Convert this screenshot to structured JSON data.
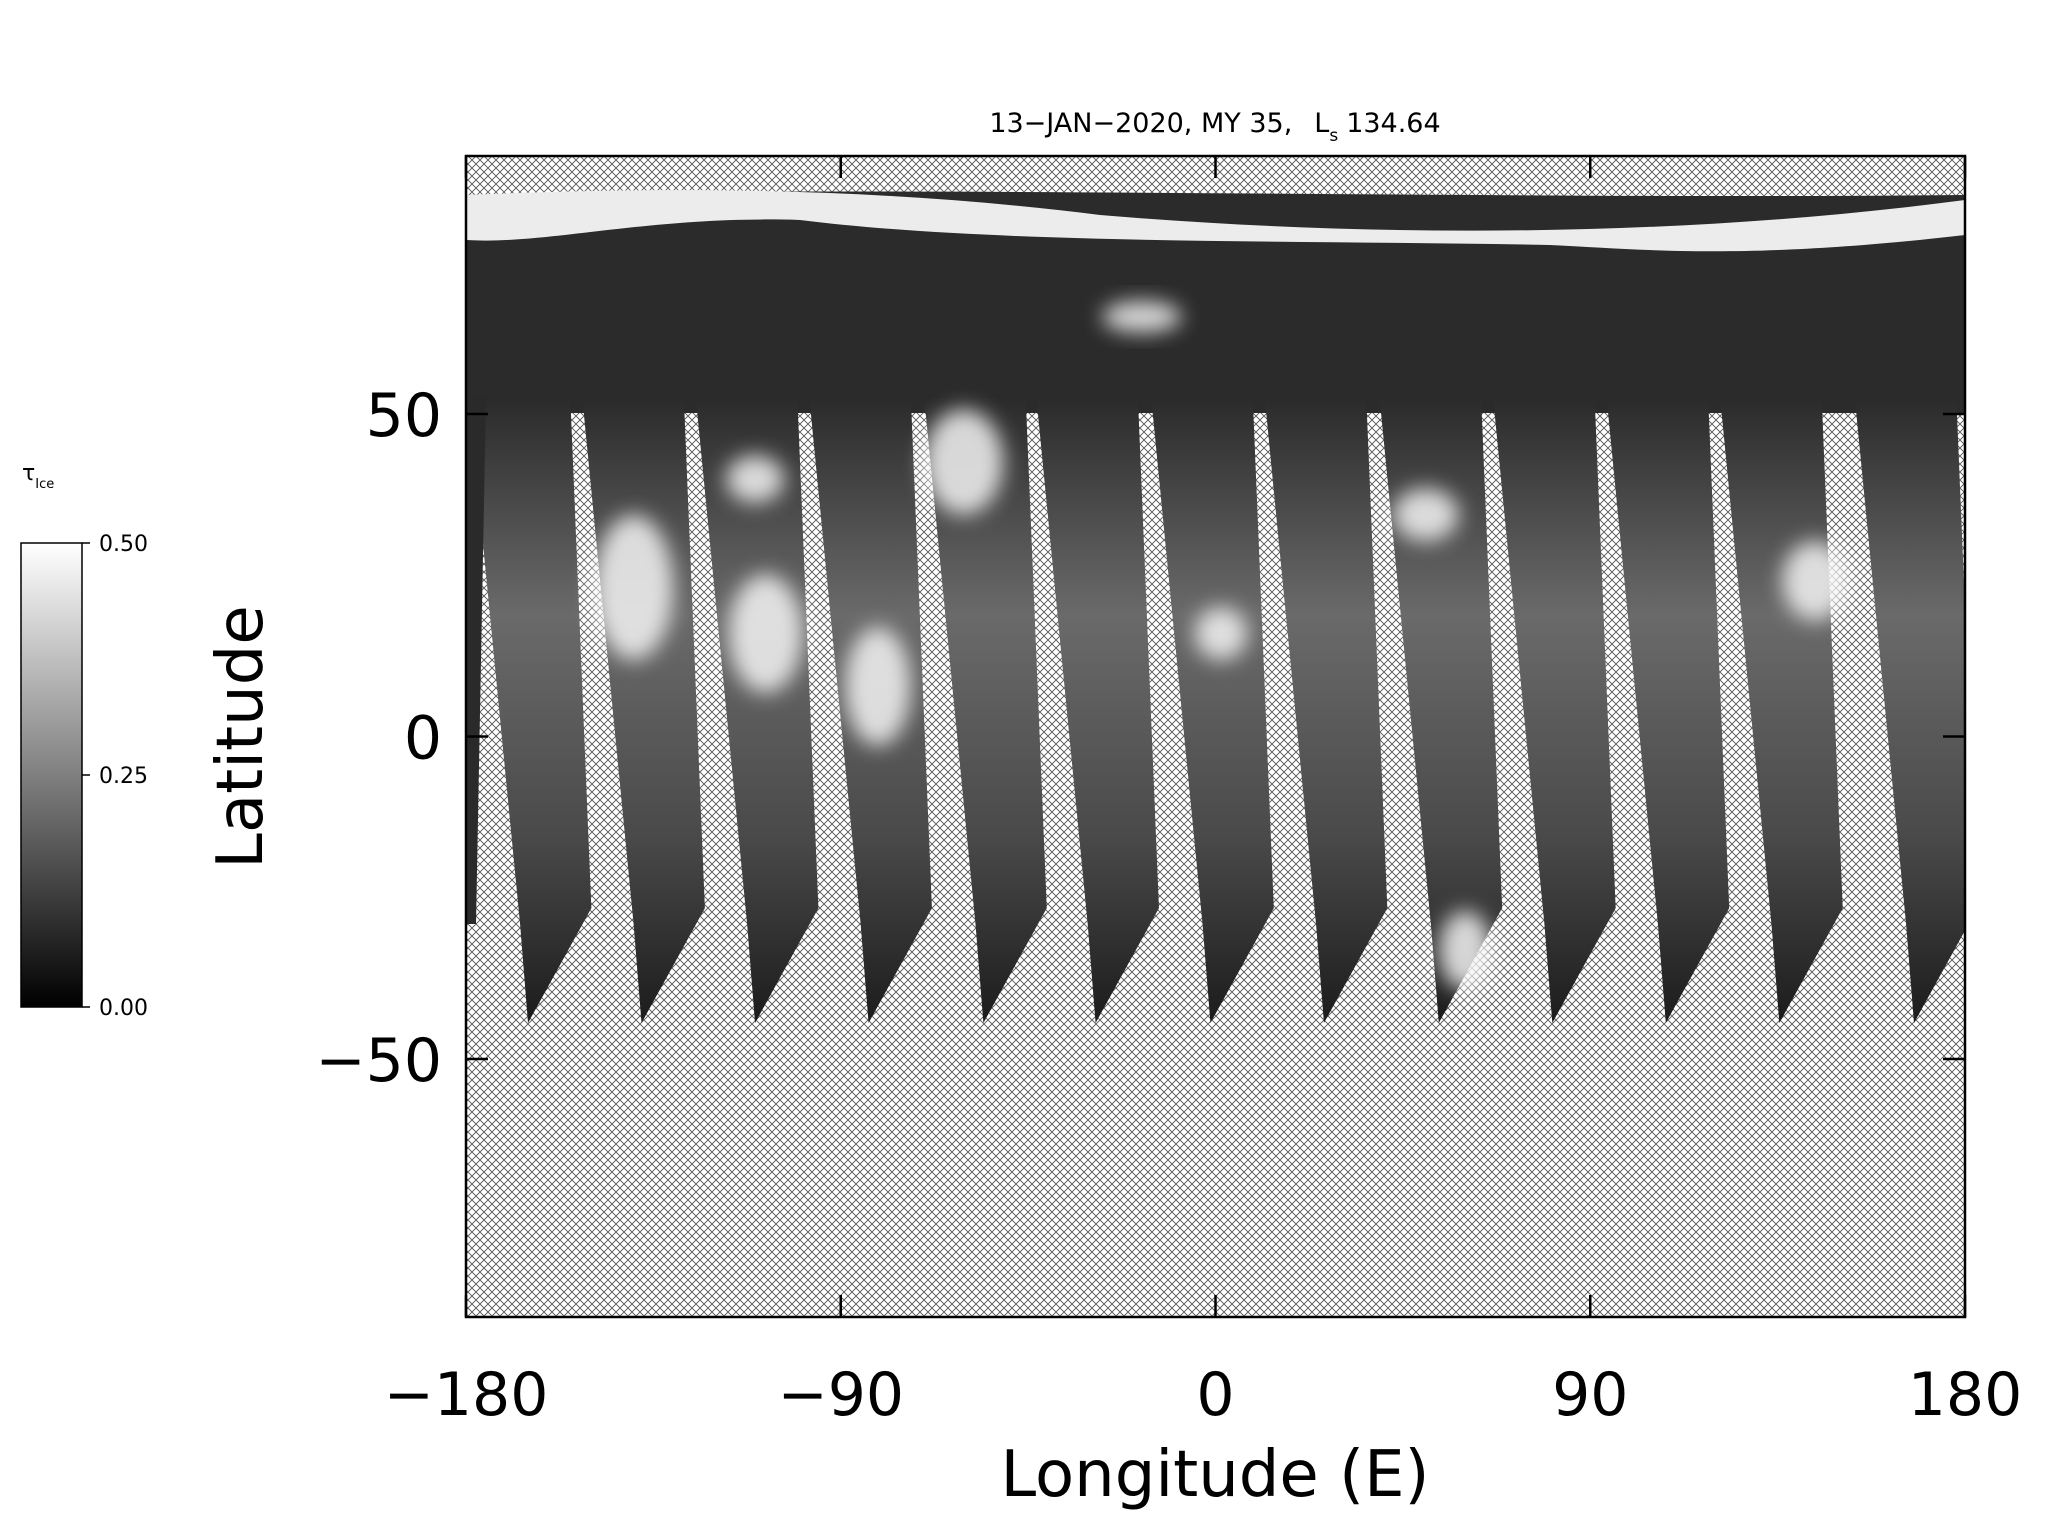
{
  "chart_data": {
    "type": "map",
    "title": "13−JAN−2020, MY 35,",
    "title_symbol": "L",
    "title_subscript": "s",
    "title_value": "134.64",
    "x_label": "Longitude (E)",
    "y_label": "Latitude",
    "xlim": [
      -180,
      180
    ],
    "ylim": [
      -90,
      90
    ],
    "xticks": [
      {
        "value": -180,
        "label": "−180"
      },
      {
        "value": -90,
        "label": "−90"
      },
      0,
      90,
      180
    ],
    "yticks": [
      {
        "value": -50,
        "label": "−50"
      },
      0,
      50
    ],
    "colorbar": {
      "label": "τ",
      "label_subscript": "Ice",
      "clim": [
        0,
        0.5
      ],
      "ticks": [
        {
          "value": 0,
          "label": "0.00"
        },
        {
          "value": 0.25,
          "label": "0.25"
        },
        {
          "value": 0.5,
          "label": "0.50"
        }
      ]
    }
  }
}
